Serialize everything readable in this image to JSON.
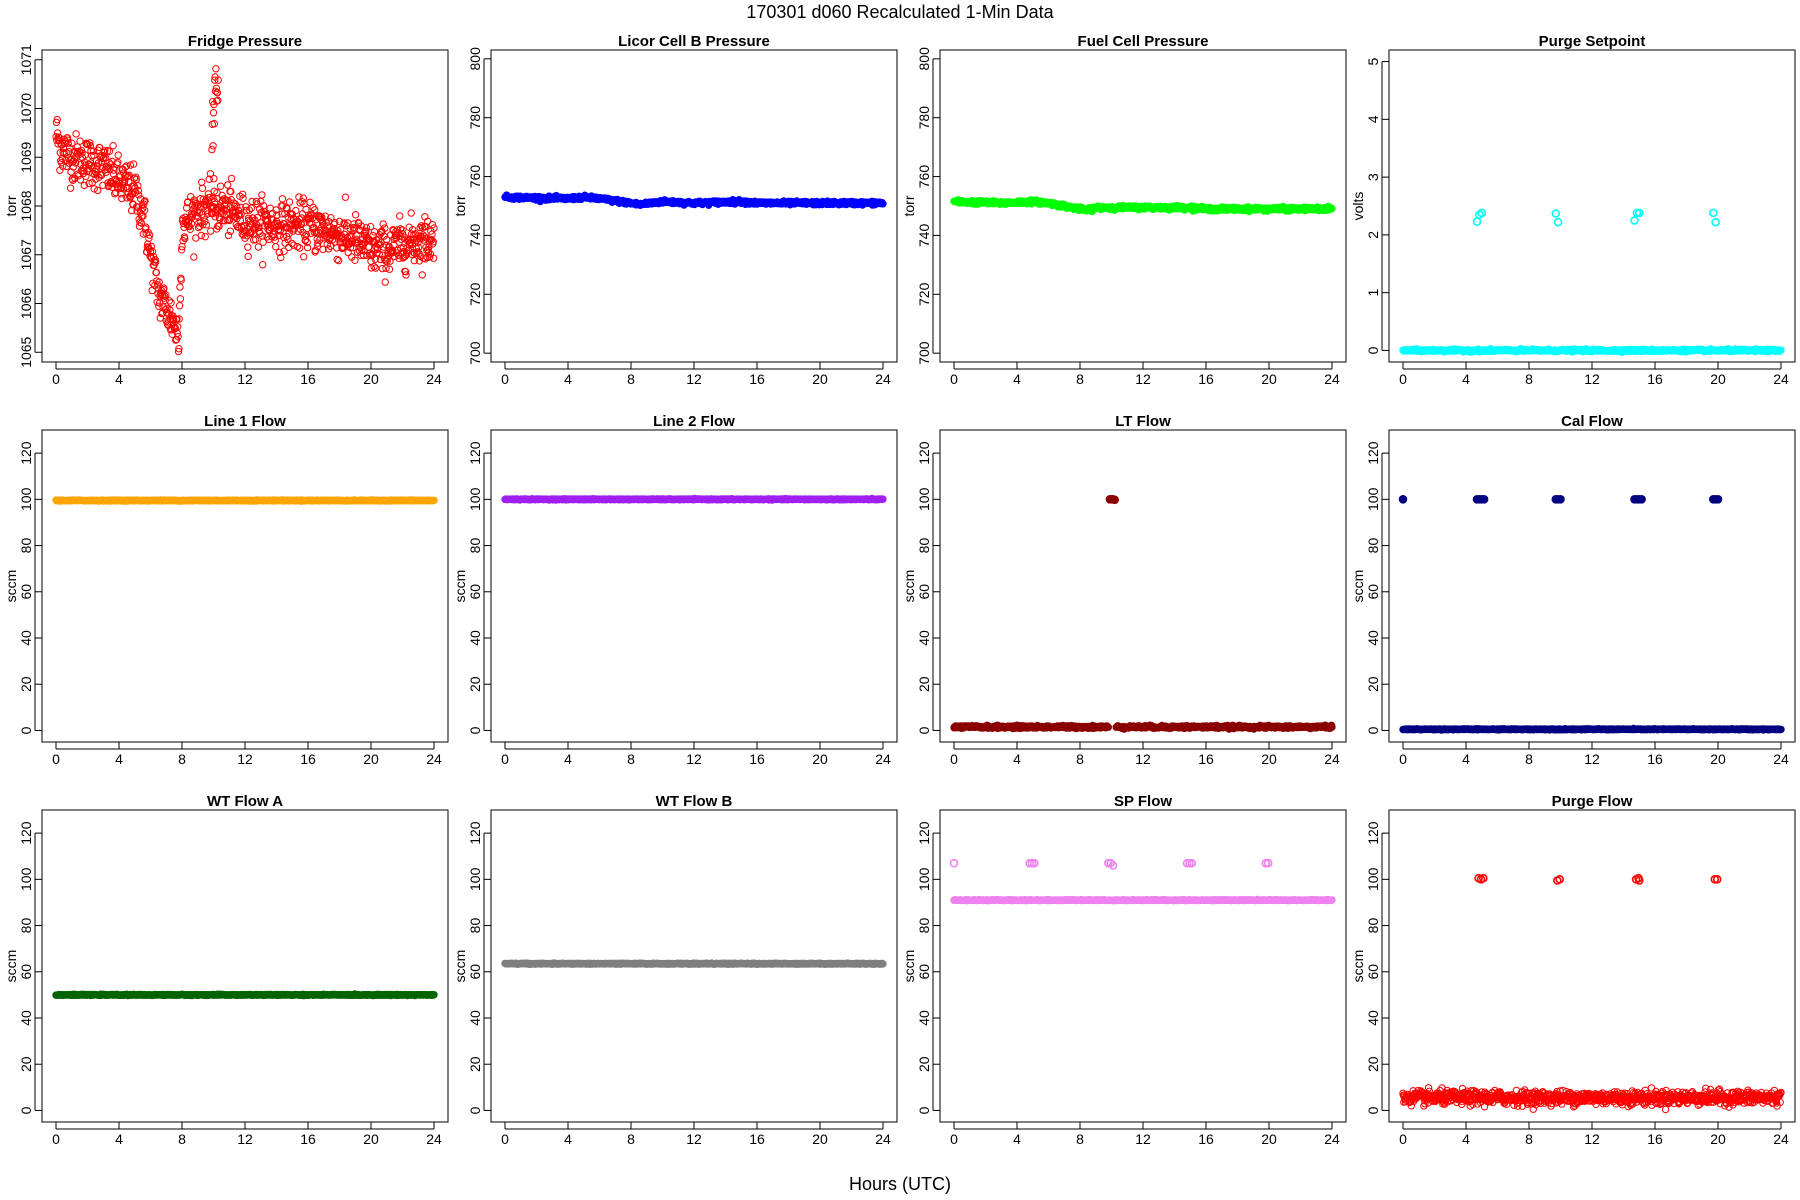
{
  "figure": {
    "title": "170301   d060   Recalculated 1-Min Data",
    "xlabel": "Hours (UTC)"
  },
  "chart_data": [
    {
      "type": "scatter",
      "title": "Fridge Pressure",
      "ylabel": "torr",
      "color": "#ff0000",
      "xlim": [
        0,
        24
      ],
      "ylim": [
        1064.8,
        1071.2
      ],
      "xticks": [
        0,
        4,
        8,
        12,
        16,
        20,
        24
      ],
      "yticks": [
        1065,
        1066,
        1067,
        1068,
        1069,
        1070,
        1071
      ],
      "marker": "open-circle",
      "noise": 0.25,
      "segments": [
        {
          "x": [
            0,
            0.3,
            1,
            2,
            3,
            4,
            5,
            5.5,
            6,
            6.5,
            7,
            7.5,
            7.8,
            8,
            9,
            10,
            11,
            12,
            14,
            16,
            18,
            19,
            20,
            21,
            22,
            23,
            24
          ],
          "y": [
            1069.5,
            1069.2,
            1069.0,
            1068.9,
            1068.8,
            1068.5,
            1068.3,
            1067.9,
            1067.0,
            1066.2,
            1065.9,
            1065.6,
            1065.3,
            1067.6,
            1067.9,
            1068.0,
            1067.9,
            1067.7,
            1067.6,
            1067.6,
            1067.4,
            1067.3,
            1067.1,
            1067.1,
            1067.2,
            1067.3,
            1067.3
          ]
        },
        {
          "x": [
            9.9,
            10.3
          ],
          "y": [
            1069.7,
            1070.8
          ],
          "noise": 0.3
        }
      ]
    },
    {
      "type": "scatter",
      "title": "Licor Cell B Pressure",
      "ylabel": "torr",
      "color": "#0000ff",
      "xlim": [
        0,
        24
      ],
      "ylim": [
        697,
        803
      ],
      "xticks": [
        0,
        4,
        8,
        12,
        16,
        20,
        24
      ],
      "yticks": [
        700,
        720,
        740,
        760,
        780,
        800
      ],
      "marker": "filled-circle",
      "noise": 0.3,
      "segments": [
        {
          "x": [
            0,
            4,
            5,
            6,
            8,
            8.5,
            10,
            12,
            15,
            16,
            20,
            24
          ],
          "y": [
            753,
            752.5,
            753,
            752.5,
            751,
            750.5,
            751.5,
            751,
            751.5,
            751,
            751,
            751
          ]
        }
      ]
    },
    {
      "type": "scatter",
      "title": "Fuel Cell Pressure",
      "ylabel": "torr",
      "color": "#00ff00",
      "xlim": [
        0,
        24
      ],
      "ylim": [
        697,
        803
      ],
      "xticks": [
        0,
        4,
        8,
        12,
        16,
        20,
        24
      ],
      "yticks": [
        700,
        720,
        740,
        760,
        780,
        800
      ],
      "marker": "filled-circle",
      "noise": 0.3,
      "segments": [
        {
          "x": [
            0,
            3,
            5,
            6,
            7,
            8,
            8.5,
            9,
            12,
            15,
            16,
            20,
            24
          ],
          "y": [
            751.5,
            751,
            751.5,
            751,
            750,
            749,
            748.5,
            749.5,
            749.5,
            749.5,
            749,
            749,
            749
          ]
        }
      ]
    },
    {
      "type": "scatter",
      "title": "Purge Setpoint",
      "ylabel": "volts",
      "color": "#00ffff",
      "xlim": [
        0,
        24
      ],
      "ylim": [
        -0.2,
        5.2
      ],
      "xticks": [
        0,
        4,
        8,
        12,
        16,
        20,
        24
      ],
      "yticks": [
        0,
        1,
        2,
        3,
        4,
        5
      ],
      "marker": "filled-circle",
      "noise": 0.01,
      "segments": [
        {
          "x": [
            0,
            24
          ],
          "y": [
            0,
            0
          ]
        }
      ],
      "points": [
        {
          "x": 4.7,
          "y": 2.23
        },
        {
          "x": 4.85,
          "y": 2.35
        },
        {
          "x": 5.0,
          "y": 2.38
        },
        {
          "x": 9.7,
          "y": 2.37
        },
        {
          "x": 9.85,
          "y": 2.22
        },
        {
          "x": 14.7,
          "y": 2.25
        },
        {
          "x": 14.85,
          "y": 2.38
        },
        {
          "x": 15.0,
          "y": 2.38
        },
        {
          "x": 19.7,
          "y": 2.38
        },
        {
          "x": 19.85,
          "y": 2.22
        }
      ],
      "points_marker": "open-circle"
    },
    {
      "type": "scatter",
      "title": "Line 1 Flow",
      "ylabel": "sccm",
      "color": "#ffa500",
      "xlim": [
        0,
        24
      ],
      "ylim": [
        -5,
        130
      ],
      "xticks": [
        0,
        4,
        8,
        12,
        16,
        20,
        24
      ],
      "yticks": [
        0,
        20,
        40,
        60,
        80,
        100,
        120
      ],
      "marker": "filled-circle",
      "noise": 0.1,
      "segments": [
        {
          "x": [
            0,
            24
          ],
          "y": [
            99.5,
            99.5
          ]
        }
      ]
    },
    {
      "type": "scatter",
      "title": "Line 2 Flow",
      "ylabel": "sccm",
      "color": "#a020f0",
      "xlim": [
        0,
        24
      ],
      "ylim": [
        -5,
        130
      ],
      "xticks": [
        0,
        4,
        8,
        12,
        16,
        20,
        24
      ],
      "yticks": [
        0,
        20,
        40,
        60,
        80,
        100,
        120
      ],
      "marker": "filled-circle",
      "noise": 0.1,
      "segments": [
        {
          "x": [
            0,
            24
          ],
          "y": [
            100,
            100
          ]
        }
      ]
    },
    {
      "type": "scatter",
      "title": "LT Flow",
      "ylabel": "sccm",
      "color": "#8b0000",
      "xlim": [
        0,
        24
      ],
      "ylim": [
        -5,
        130
      ],
      "xticks": [
        0,
        4,
        8,
        12,
        16,
        20,
        24
      ],
      "yticks": [
        0,
        20,
        40,
        60,
        80,
        100,
        120
      ],
      "marker": "filled-circle",
      "noise": 0.3,
      "segments": [
        {
          "x": [
            0,
            9.8
          ],
          "y": [
            1.5,
            1.5
          ]
        },
        {
          "x": 10.3,
          "x2": 24,
          "y": [
            1.5,
            1.5
          ]
        }
      ],
      "points": [
        {
          "x": 9.9,
          "y": 100
        },
        {
          "x": 10.0,
          "y": 100
        },
        {
          "x": 10.1,
          "y": 100
        },
        {
          "x": 10.2,
          "y": 99.8
        }
      ]
    },
    {
      "type": "scatter",
      "title": "Cal Flow",
      "ylabel": "sccm",
      "color": "#000080",
      "xlim": [
        0,
        24
      ],
      "ylim": [
        -5,
        130
      ],
      "xticks": [
        0,
        4,
        8,
        12,
        16,
        20,
        24
      ],
      "yticks": [
        0,
        20,
        40,
        60,
        80,
        100,
        120
      ],
      "marker": "filled-circle",
      "noise": 0.1,
      "segments": [
        {
          "x": [
            0,
            24
          ],
          "y": [
            0.5,
            0.5
          ]
        }
      ],
      "points": [
        {
          "x": 0,
          "y": 100
        },
        {
          "x": 4.7,
          "y": 100
        },
        {
          "x": 4.85,
          "y": 100
        },
        {
          "x": 5.0,
          "y": 100
        },
        {
          "x": 5.15,
          "y": 100
        },
        {
          "x": 9.7,
          "y": 100
        },
        {
          "x": 9.85,
          "y": 100
        },
        {
          "x": 10.0,
          "y": 100
        },
        {
          "x": 14.7,
          "y": 100
        },
        {
          "x": 14.85,
          "y": 100
        },
        {
          "x": 15.0,
          "y": 100
        },
        {
          "x": 15.15,
          "y": 100
        },
        {
          "x": 19.7,
          "y": 100
        },
        {
          "x": 19.85,
          "y": 100
        },
        {
          "x": 20.0,
          "y": 100
        }
      ]
    },
    {
      "type": "scatter",
      "title": "WT Flow A",
      "ylabel": "sccm",
      "color": "#006400",
      "xlim": [
        0,
        24
      ],
      "ylim": [
        -5,
        130
      ],
      "xticks": [
        0,
        4,
        8,
        12,
        16,
        20,
        24
      ],
      "yticks": [
        0,
        20,
        40,
        60,
        80,
        100,
        120
      ],
      "marker": "filled-circle",
      "noise": 0.1,
      "segments": [
        {
          "x": [
            0,
            24
          ],
          "y": [
            50,
            50
          ]
        }
      ]
    },
    {
      "type": "scatter",
      "title": "WT Flow B",
      "ylabel": "sccm",
      "color": "#7f7f7f",
      "xlim": [
        0,
        24
      ],
      "ylim": [
        -5,
        130
      ],
      "xticks": [
        0,
        4,
        8,
        12,
        16,
        20,
        24
      ],
      "yticks": [
        0,
        20,
        40,
        60,
        80,
        100,
        120
      ],
      "marker": "filled-circle",
      "noise": 0.1,
      "segments": [
        {
          "x": [
            0,
            24
          ],
          "y": [
            63.5,
            63.5
          ]
        }
      ]
    },
    {
      "type": "scatter",
      "title": "SP Flow",
      "ylabel": "sccm",
      "color": "#ee82ee",
      "xlim": [
        0,
        24
      ],
      "ylim": [
        -5,
        130
      ],
      "xticks": [
        0,
        4,
        8,
        12,
        16,
        20,
        24
      ],
      "yticks": [
        0,
        20,
        40,
        60,
        80,
        100,
        120
      ],
      "marker": "filled-circle",
      "noise": 0.1,
      "segments": [
        {
          "x": [
            0,
            24
          ],
          "y": [
            91,
            91
          ]
        }
      ],
      "points": [
        {
          "x": 0,
          "y": 107
        },
        {
          "x": 4.8,
          "y": 107
        },
        {
          "x": 4.95,
          "y": 107
        },
        {
          "x": 5.1,
          "y": 107
        },
        {
          "x": 9.8,
          "y": 107
        },
        {
          "x": 9.95,
          "y": 107
        },
        {
          "x": 10.1,
          "y": 106
        },
        {
          "x": 14.8,
          "y": 107
        },
        {
          "x": 14.95,
          "y": 107
        },
        {
          "x": 15.1,
          "y": 107
        },
        {
          "x": 19.8,
          "y": 107
        },
        {
          "x": 19.95,
          "y": 107
        }
      ],
      "points_marker": "open-circle"
    },
    {
      "type": "scatter",
      "title": "Purge Flow",
      "ylabel": "sccm",
      "color": "#ff0000",
      "xlim": [
        0,
        24
      ],
      "ylim": [
        -5,
        130
      ],
      "xticks": [
        0,
        4,
        8,
        12,
        16,
        20,
        24
      ],
      "yticks": [
        0,
        20,
        40,
        60,
        80,
        100,
        120
      ],
      "marker": "open-circle",
      "noise": 1.5,
      "segments": [
        {
          "x": [
            0,
            24
          ],
          "y": [
            5.5,
            5.5
          ]
        }
      ],
      "points": [
        {
          "x": 4.8,
          "y": 100.5
        },
        {
          "x": 4.95,
          "y": 100
        },
        {
          "x": 5.1,
          "y": 100.5
        },
        {
          "x": 9.8,
          "y": 99.5
        },
        {
          "x": 9.95,
          "y": 100
        },
        {
          "x": 14.8,
          "y": 100
        },
        {
          "x": 14.95,
          "y": 100.5
        },
        {
          "x": 15.0,
          "y": 99.5
        },
        {
          "x": 19.8,
          "y": 100
        },
        {
          "x": 19.95,
          "y": 100
        }
      ],
      "points_marker": "open-circle"
    }
  ]
}
